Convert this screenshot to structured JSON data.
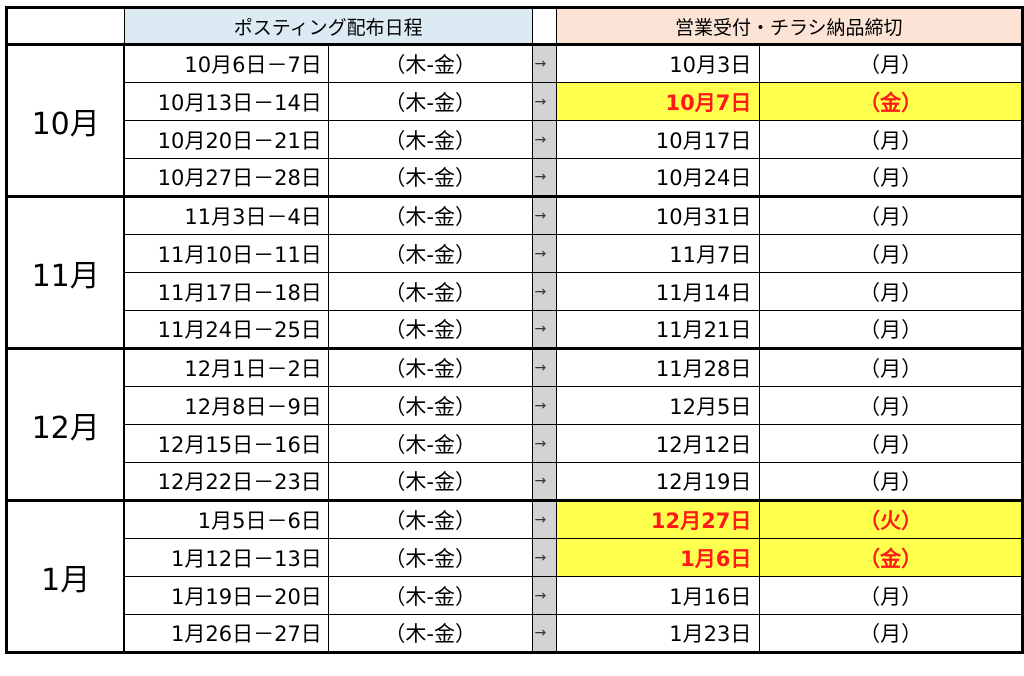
{
  "header": {
    "posting_label": "ポスティング配布日程",
    "sales_label": "営業受付・チラシ納品締切"
  },
  "arrow_glyph": "→",
  "highlight_color": "#ffff4d",
  "highlight_text_color": "#ff1a1a",
  "groups": [
    {
      "month": "10月",
      "rows": [
        {
          "dates": "10月6日－7日",
          "days": "（木-金）",
          "deadline": "10月3日",
          "deadline_day": "（月）",
          "highlight": false
        },
        {
          "dates": "10月13日－14日",
          "days": "（木-金）",
          "deadline": "10月7日",
          "deadline_day": "（金）",
          "highlight": true
        },
        {
          "dates": "10月20日－21日",
          "days": "（木-金）",
          "deadline": "10月17日",
          "deadline_day": "（月）",
          "highlight": false
        },
        {
          "dates": "10月27日－28日",
          "days": "（木-金）",
          "deadline": "10月24日",
          "deadline_day": "（月）",
          "highlight": false
        }
      ]
    },
    {
      "month": "11月",
      "rows": [
        {
          "dates": "11月3日－4日",
          "days": "（木-金）",
          "deadline": "10月31日",
          "deadline_day": "（月）",
          "highlight": false
        },
        {
          "dates": "11月10日－11日",
          "days": "（木-金）",
          "deadline": "11月7日",
          "deadline_day": "（月）",
          "highlight": false
        },
        {
          "dates": "11月17日－18日",
          "days": "（木-金）",
          "deadline": "11月14日",
          "deadline_day": "（月）",
          "highlight": false
        },
        {
          "dates": "11月24日－25日",
          "days": "（木-金）",
          "deadline": "11月21日",
          "deadline_day": "（月）",
          "highlight": false
        }
      ]
    },
    {
      "month": "12月",
      "rows": [
        {
          "dates": "12月1日－2日",
          "days": "（木-金）",
          "deadline": "11月28日",
          "deadline_day": "（月）",
          "highlight": false
        },
        {
          "dates": "12月8日－9日",
          "days": "（木-金）",
          "deadline": "12月5日",
          "deadline_day": "（月）",
          "highlight": false
        },
        {
          "dates": "12月15日－16日",
          "days": "（木-金）",
          "deadline": "12月12日",
          "deadline_day": "（月）",
          "highlight": false
        },
        {
          "dates": "12月22日－23日",
          "days": "（木-金）",
          "deadline": "12月19日",
          "deadline_day": "（月）",
          "highlight": false
        }
      ]
    },
    {
      "month": "1月",
      "rows": [
        {
          "dates": "1月5日－6日",
          "days": "（木-金）",
          "deadline": "12月27日",
          "deadline_day": "（火）",
          "highlight": true
        },
        {
          "dates": "1月12日－13日",
          "days": "（木-金）",
          "deadline": "1月6日",
          "deadline_day": "（金）",
          "highlight": true
        },
        {
          "dates": "1月19日－20日",
          "days": "（木-金）",
          "deadline": "1月16日",
          "deadline_day": "（月）",
          "highlight": false
        },
        {
          "dates": "1月26日－27日",
          "days": "（木-金）",
          "deadline": "1月23日",
          "deadline_day": "（月）",
          "highlight": false
        }
      ]
    }
  ]
}
